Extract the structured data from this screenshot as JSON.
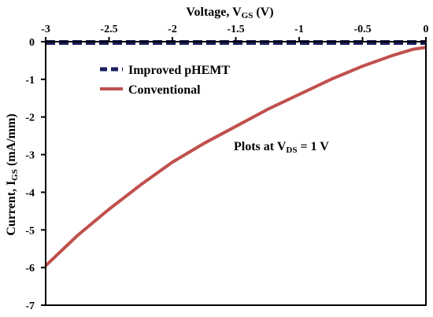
{
  "chart_data": {
    "type": "line",
    "xlabel": {
      "main": "Voltage, V",
      "sub": "GS",
      "unit": " (V)"
    },
    "ylabel": {
      "main": "Current, I",
      "sub": "GS",
      "unit": " (mA/mm)"
    },
    "xlim": [
      -3,
      0
    ],
    "ylim": [
      -7,
      0
    ],
    "x_axis_position": "top",
    "x_ticks": [
      -3,
      -2.5,
      -2,
      -1.5,
      -1,
      -0.5,
      0
    ],
    "x_tick_labels": [
      "-3",
      "-2.5",
      "-2",
      "-1.5",
      "-1",
      "-0.5",
      "0"
    ],
    "y_ticks": [
      0,
      -1,
      -2,
      -3,
      -4,
      -5,
      -6,
      -7
    ],
    "y_tick_labels": [
      "0",
      "-1",
      "-2",
      "-3",
      "-4",
      "-5",
      "-6",
      "-7"
    ],
    "grid": false,
    "legend_position": "top-left",
    "series": [
      {
        "name": "Improved pHEMT",
        "color": "#1a1f5c",
        "style": "dashed",
        "x": [
          -3,
          -2.5,
          -2,
          -1.5,
          -1,
          -0.5,
          0
        ],
        "y": [
          -0.02,
          -0.02,
          -0.02,
          -0.02,
          -0.02,
          -0.02,
          -0.02
        ]
      },
      {
        "name": "Conventional",
        "color": "#c0504d",
        "style": "solid",
        "x": [
          -3,
          -2.75,
          -2.5,
          -2.25,
          -2,
          -1.75,
          -1.5,
          -1.25,
          -1,
          -0.75,
          -0.5,
          -0.25,
          -0.1,
          0
        ],
        "y": [
          -5.95,
          -5.15,
          -4.45,
          -3.8,
          -3.2,
          -2.7,
          -2.25,
          -1.8,
          -1.4,
          -1.0,
          -0.65,
          -0.35,
          -0.2,
          -0.15
        ]
      }
    ],
    "annotation": {
      "prefix": "Plots at V",
      "sub": "DS",
      "suffix": " = 1 V"
    }
  }
}
